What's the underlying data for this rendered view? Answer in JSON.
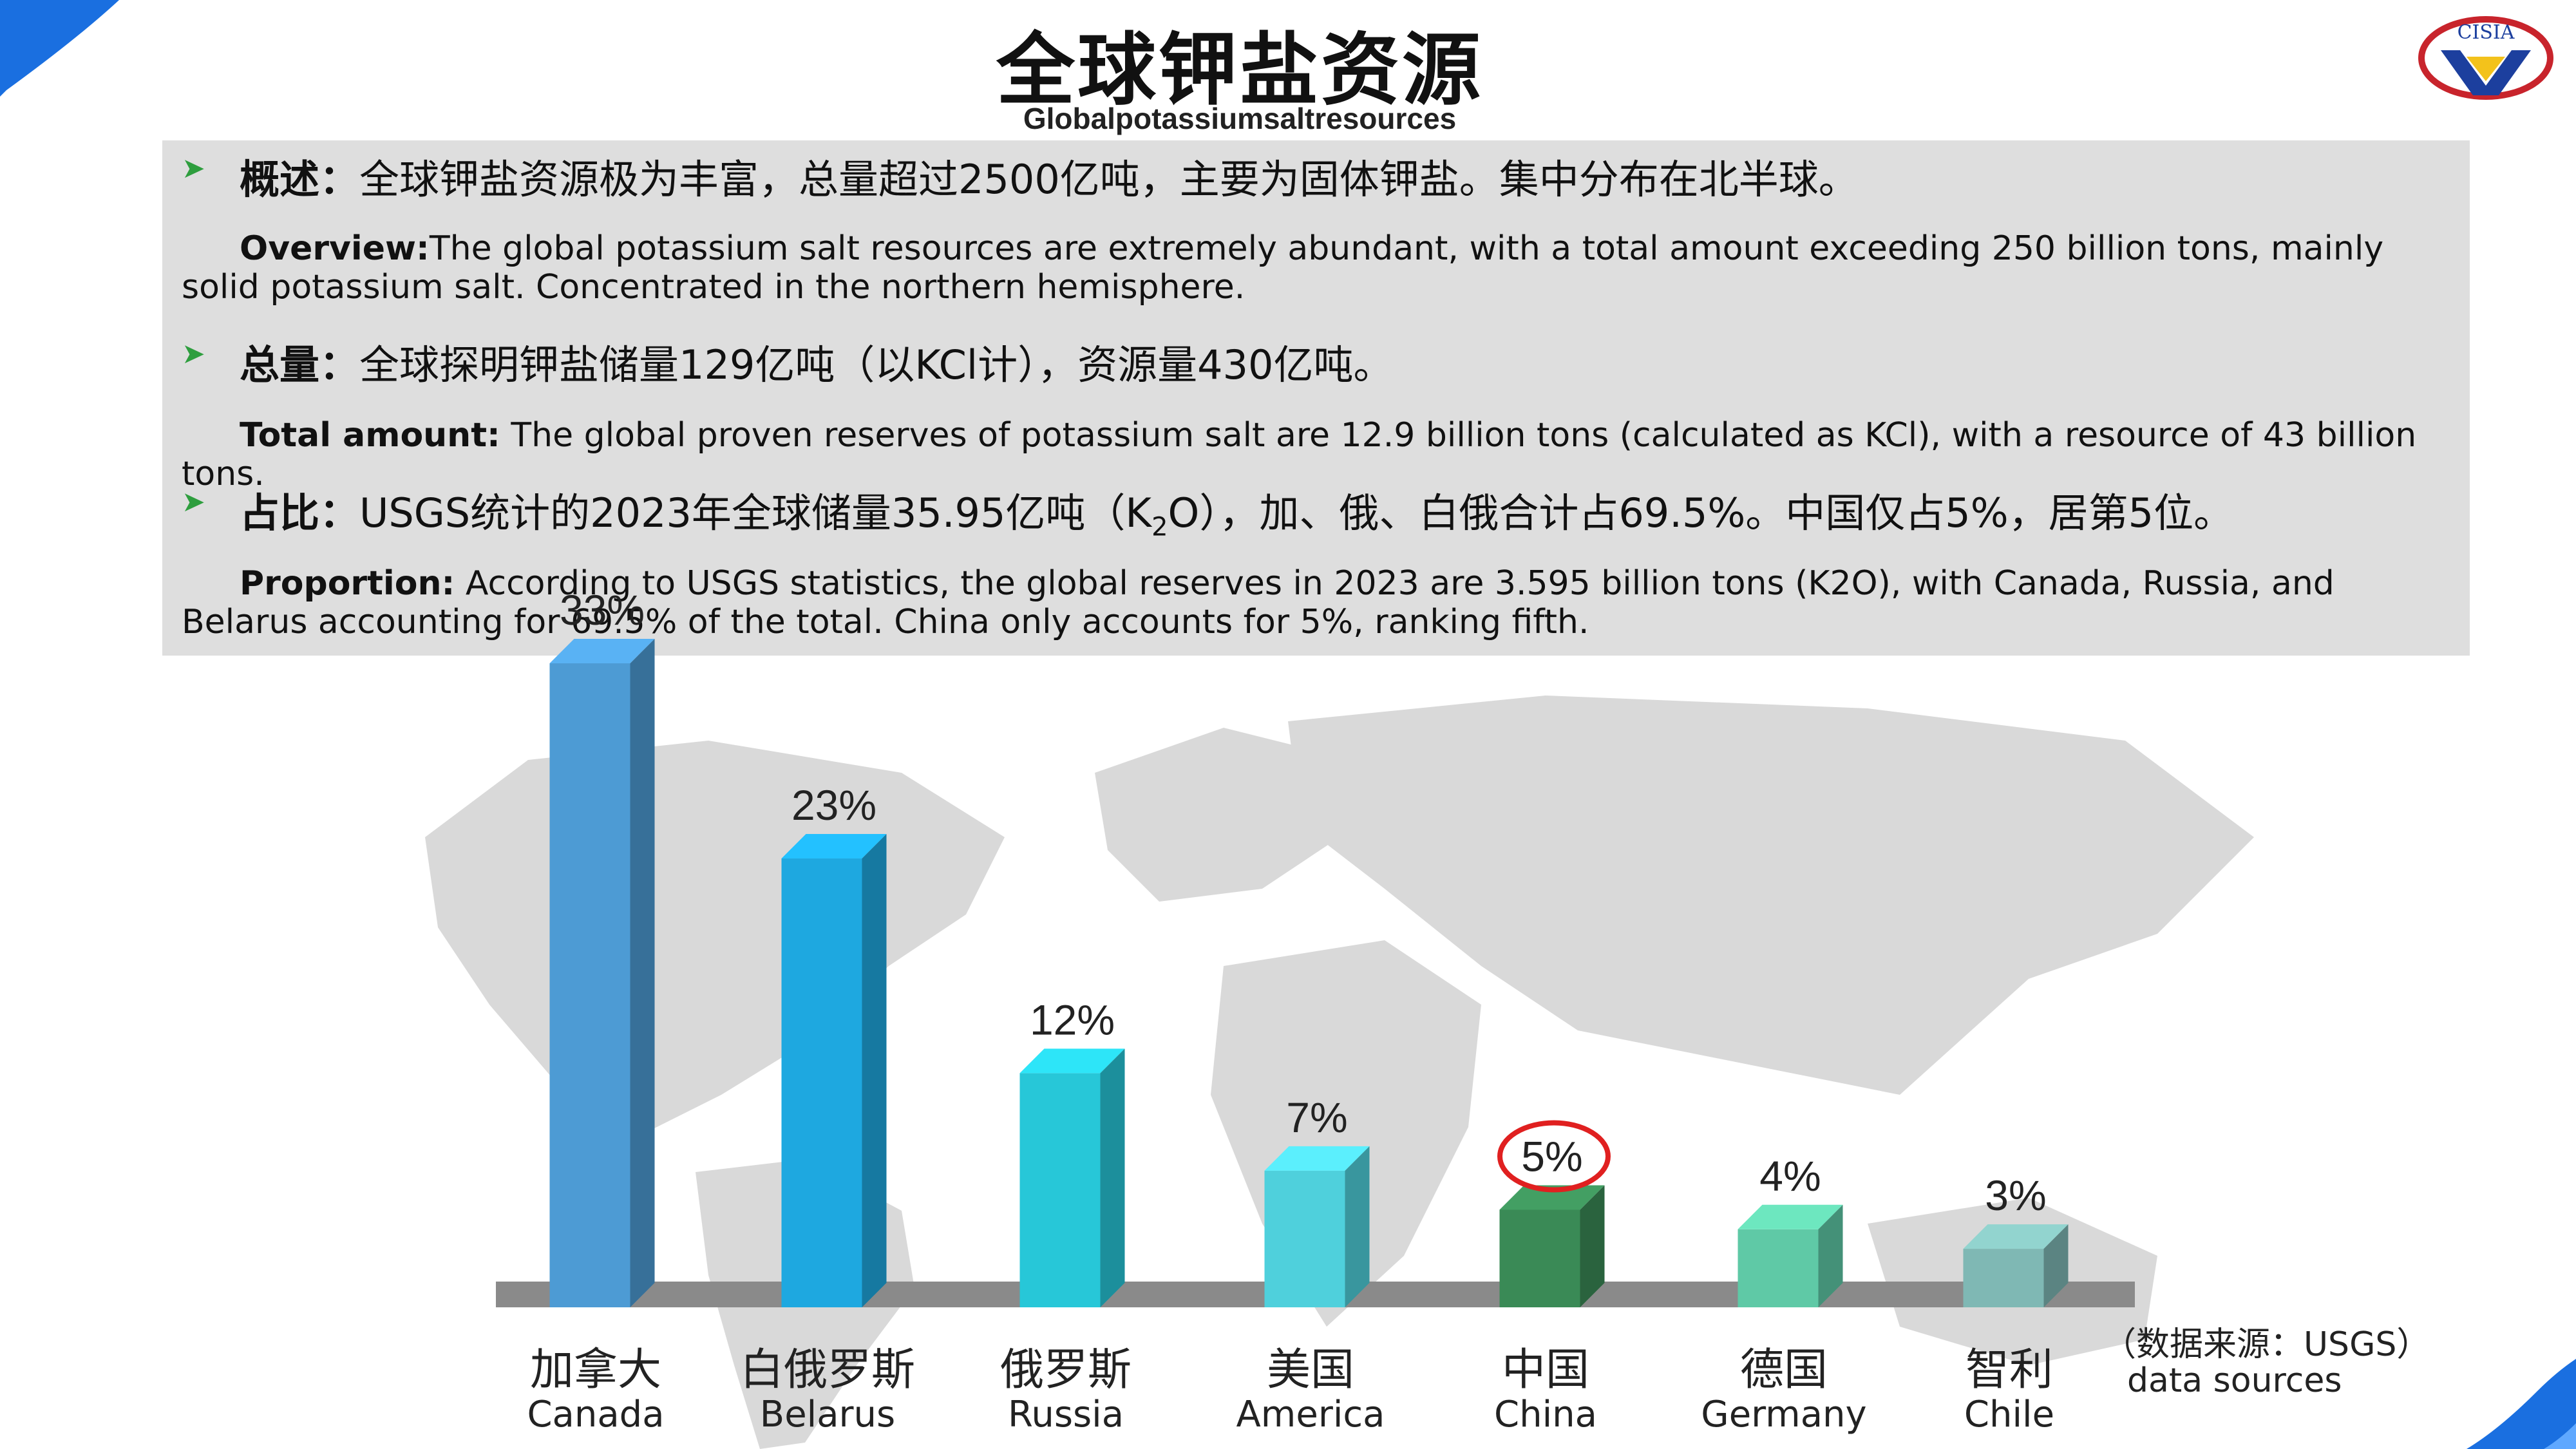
{
  "header": {
    "title": "全球钾盐资源",
    "subtitle": "Globalpotassiumsaltresources",
    "logo_text": "CISIA"
  },
  "info": {
    "items": [
      {
        "label_cn": "概述：",
        "text_cn": "全球钾盐资源极为丰富，总量超过2500亿吨，主要为固体钾盐。集中分布在北半球。",
        "label_en": "Overview:",
        "text_en": "The global potassium salt resources are extremely abundant, with a total amount exceeding 250 billion tons, mainly solid potassium salt. Concentrated in the northern hemisphere."
      },
      {
        "label_cn": "总量：",
        "text_cn": "全球探明钾盐储量129亿吨（以KCl计），资源量430亿吨。",
        "label_en": "Total amount:",
        "text_en": " The global proven reserves of potassium salt are 12.9 billion tons (calculated as KCl), with a resource of 43 billion tons."
      },
      {
        "label_cn": "占比：",
        "text_cn_a": "USGS统计的2023年全球储量35.95亿吨（K",
        "text_cn_sub": "2",
        "text_cn_b": "O），加、俄、白俄合计占69.5%。中国仅占5%，居第5位。",
        "label_en": "Proportion:",
        "text_en": " According to USGS statistics, the global reserves in 2023 are 3.595 billion tons (K2O), with Canada, Russia, and Belarus accounting for 69.5% of the total. China only accounts for 5%, ranking fifth."
      }
    ]
  },
  "chart_data": {
    "type": "bar",
    "categories_cn": [
      "加拿大",
      "白俄罗斯",
      "俄罗斯",
      "美国",
      "中国",
      "德国",
      "智利"
    ],
    "categories_en": [
      "Canada",
      "Belarus",
      "Russia",
      "America",
      "China",
      "Germany",
      "Chile"
    ],
    "values": [
      33,
      23,
      12,
      7,
      5,
      4,
      3
    ],
    "value_labels": [
      "33%",
      "23%",
      "12%",
      "7%",
      "5%",
      "4%",
      "3%"
    ],
    "colors": [
      "#4d9bd4",
      "#1ea8e0",
      "#27c7d8",
      "#4fd0dc",
      "#3a8a56",
      "#5fc9a6",
      "#7fb8b4"
    ],
    "highlight": "中国",
    "highlight_color": "#e02020",
    "title": "",
    "xlabel": "",
    "ylabel": "",
    "ylim": [
      0,
      35
    ],
    "grid": false,
    "background": "world map silhouette"
  },
  "source": {
    "line1": "（数据来源：USGS）",
    "line2": "data sources"
  }
}
